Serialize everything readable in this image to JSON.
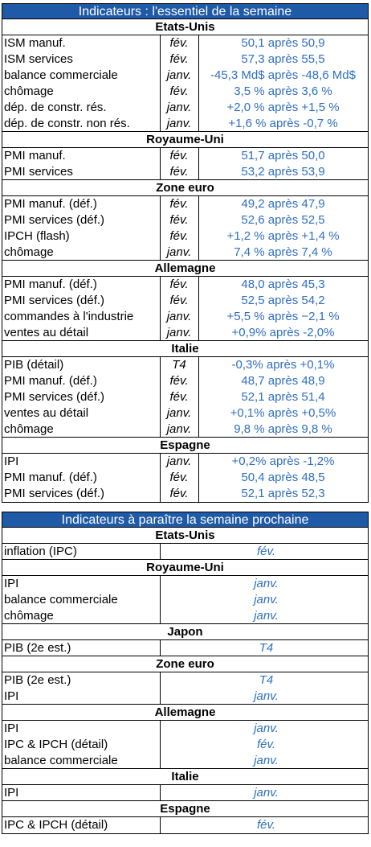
{
  "table1": {
    "title": "Indicateurs : l'essentiel de la semaine",
    "sections": [
      {
        "name": "Etats-Unis",
        "rows": [
          [
            "ISM manuf.",
            "fév.",
            "50,1 après 50,9"
          ],
          [
            "ISM services",
            "fév.",
            "57,3 après 55,5"
          ],
          [
            "balance commerciale",
            "janv.",
            "-45,3 Md$ après -48,6 Md$"
          ],
          [
            "chômage",
            "fév.",
            "3,5 % après 3,6 %"
          ],
          [
            "dép. de constr. rés.",
            "janv.",
            "+2,0 % après +1,5 %"
          ],
          [
            "dép. de constr. non rés.",
            "janv.",
            "+1,6 % après -0,7 %"
          ]
        ]
      },
      {
        "name": "Royaume-Uni",
        "rows": [
          [
            "PMI manuf.",
            "fév.",
            "51,7 après 50,0"
          ],
          [
            "PMI services",
            "fév.",
            "53,2 après 53,9"
          ]
        ]
      },
      {
        "name": "Zone euro",
        "rows": [
          [
            "PMI manuf. (déf.)",
            "fév.",
            "49,2 après 47,9"
          ],
          [
            "PMI services (déf.)",
            "fév.",
            "52,6 après 52,5"
          ],
          [
            "IPCH (flash)",
            "fév.",
            "+1,2 % après +1,4 %"
          ],
          [
            "chômage",
            "janv.",
            "7,4 % après 7,4 %"
          ]
        ]
      },
      {
        "name": "Allemagne",
        "rows": [
          [
            "PMI manuf. (déf.)",
            "fév.",
            "48,0 après 45,3"
          ],
          [
            "PMI services (déf.)",
            "fév.",
            "52,5 après 54,2"
          ],
          [
            "commandes à l'industrie",
            "janv.",
            "+5,5 % après −2,1 %"
          ],
          [
            "ventes au détail",
            "janv.",
            "+0,9% après -2,0%"
          ]
        ]
      },
      {
        "name": "Italie",
        "rows": [
          [
            "PIB (détail)",
            "T4",
            "-0,3% après +0,1%"
          ],
          [
            "PMI manuf. (déf.)",
            "fév.",
            "48,7 après 48,9"
          ],
          [
            "PMI services (déf.)",
            "fév.",
            "52,1 après 51,4"
          ],
          [
            "ventes au détail",
            "janv.",
            "+0,1% après +0,5%"
          ],
          [
            "chômage",
            "janv.",
            "9,8 % après 9,8 %"
          ]
        ]
      },
      {
        "name": "Espagne",
        "rows": [
          [
            "IPI",
            "janv.",
            "+0,2% après -1,2%"
          ],
          [
            "PMI manuf. (déf.)",
            "fév.",
            "50,4 après 48,5"
          ],
          [
            "PMI services (déf.)",
            "fév.",
            "52,1 après 52,3"
          ]
        ]
      }
    ]
  },
  "table2": {
    "title": "Indicateurs à paraître la semaine prochaine",
    "sections": [
      {
        "name": "Etats-Unis",
        "rows": [
          [
            "inflation (IPC)",
            "fév."
          ]
        ]
      },
      {
        "name": "Royaume-Uni",
        "rows": [
          [
            "IPI",
            "janv."
          ],
          [
            "balance commerciale",
            "janv."
          ],
          [
            "chômage",
            "janv."
          ]
        ]
      },
      {
        "name": "Japon",
        "rows": [
          [
            "PIB (2e est.)",
            "T4"
          ]
        ]
      },
      {
        "name": "Zone euro",
        "rows": [
          [
            "PIB (2e est.)",
            "T4"
          ],
          [
            "IPI",
            "janv."
          ]
        ]
      },
      {
        "name": "Allemagne",
        "rows": [
          [
            "IPI",
            "janv."
          ],
          [
            "IPC & IPCH (détail)",
            "fév."
          ],
          [
            "balance commerciale",
            "janv."
          ]
        ]
      },
      {
        "name": "Italie",
        "rows": [
          [
            "IPI",
            "janv."
          ]
        ]
      },
      {
        "name": "Espagne",
        "rows": [
          [
            "IPC & IPCH (détail)",
            "fév."
          ]
        ]
      }
    ]
  }
}
